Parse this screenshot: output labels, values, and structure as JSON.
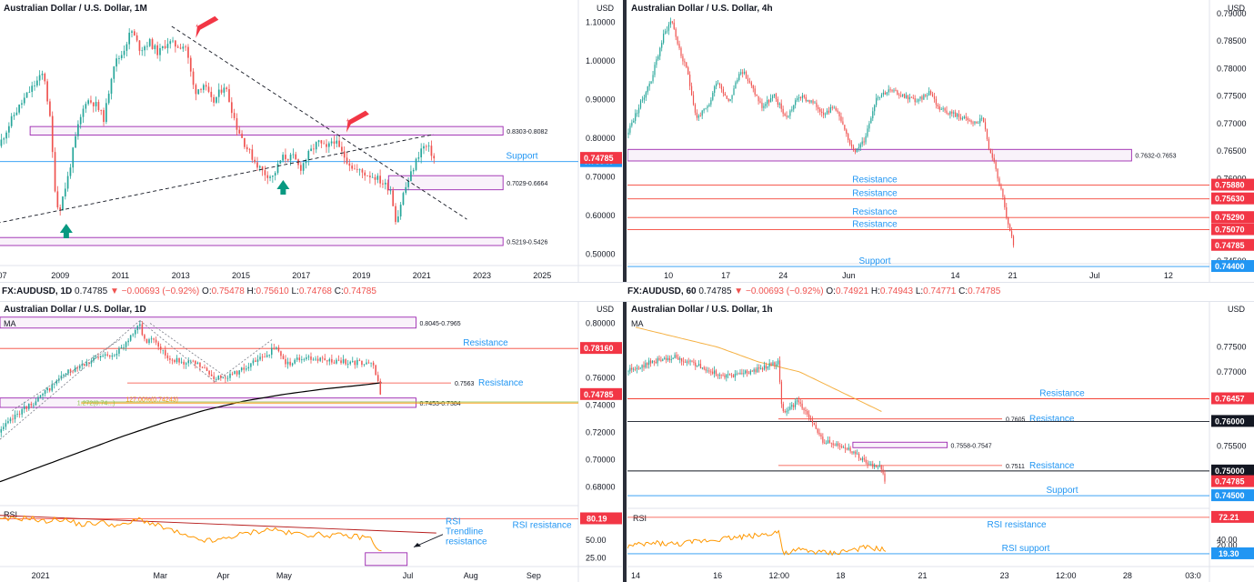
{
  "colors": {
    "up": "#26a69a",
    "down": "#ef5350",
    "zone": "#9c27b0",
    "resistance": "#f44336",
    "support": "#2196f3",
    "price_badge": "#f23645",
    "support_badge": "#2196f3",
    "black_badge": "#131722",
    "ma_line": "#000000",
    "rsi_line": "#ff9800",
    "arrow_red": "#f23645",
    "arrow_green": "#089981",
    "text_blue": "#2962ff"
  },
  "infobar": {
    "left": {
      "symbol": "FX:AUDUSD, 1D",
      "price": "0.74785",
      "change": "−0.00693 (−0.92%)",
      "o_label": "O:",
      "o": "0.75478",
      "h_label": "H:",
      "h": "0.75610",
      "l_label": "L:",
      "l": "0.74768",
      "c_label": "C:",
      "c": "0.74785"
    },
    "right": {
      "symbol": "FX:AUDUSD, 60",
      "price": "0.74785",
      "change": "−0.00693 (−0.92%)",
      "o_label": "O:",
      "o": "0.74921",
      "h_label": "H:",
      "h": "0.74943",
      "l_label": "L:",
      "l": "0.74771",
      "c_label": "C:",
      "c": "0.74785"
    }
  },
  "chart_data": [
    {
      "id": "monthly",
      "type": "candlestick",
      "title": "Australian Dollar / U.S. Dollar, 1M",
      "currency": "USD",
      "ylim": [
        0.47,
        1.13
      ],
      "ticks_y": [
        "1.10000",
        "1.00000",
        "0.90000",
        "0.80000",
        "0.70000",
        "0.60000",
        "0.50000"
      ],
      "ticks_y_values": [
        1.1,
        1.0,
        0.9,
        0.8,
        0.7,
        0.6,
        0.5
      ],
      "ticks_x": [
        "007",
        "2009",
        "2011",
        "2013",
        "2015",
        "2017",
        "2019",
        "2021",
        "2023",
        "2025"
      ],
      "xlim": [
        2007.0,
        2026.2
      ],
      "ticks_x_values": [
        2007.0,
        2009.0,
        2011.0,
        2013.0,
        2015.0,
        2017.0,
        2019.0,
        2021.0,
        2023.0,
        2025.0
      ],
      "price_path": [
        [
          2007.0,
          0.78
        ],
        [
          2007.5,
          0.86
        ],
        [
          2008.0,
          0.92
        ],
        [
          2008.5,
          0.97
        ],
        [
          2008.7,
          0.85
        ],
        [
          2008.9,
          0.64
        ],
        [
          2009.0,
          0.61
        ],
        [
          2009.3,
          0.7
        ],
        [
          2009.6,
          0.82
        ],
        [
          2009.9,
          0.9
        ],
        [
          2010.2,
          0.89
        ],
        [
          2010.5,
          0.85
        ],
        [
          2010.8,
          0.99
        ],
        [
          2011.1,
          1.02
        ],
        [
          2011.4,
          1.08
        ],
        [
          2011.7,
          1.03
        ],
        [
          2012.0,
          1.05
        ],
        [
          2012.3,
          1.02
        ],
        [
          2012.6,
          1.05
        ],
        [
          2012.9,
          1.04
        ],
        [
          2013.2,
          1.04
        ],
        [
          2013.5,
          0.92
        ],
        [
          2013.8,
          0.94
        ],
        [
          2014.1,
          0.89
        ],
        [
          2014.5,
          0.94
        ],
        [
          2014.9,
          0.83
        ],
        [
          2015.2,
          0.78
        ],
        [
          2015.5,
          0.74
        ],
        [
          2015.8,
          0.71
        ],
        [
          2016.1,
          0.7
        ],
        [
          2016.4,
          0.75
        ],
        [
          2016.8,
          0.75
        ],
        [
          2017.0,
          0.72
        ],
        [
          2017.3,
          0.76
        ],
        [
          2017.6,
          0.79
        ],
        [
          2017.9,
          0.77
        ],
        [
          2018.1,
          0.8
        ],
        [
          2018.4,
          0.76
        ],
        [
          2018.8,
          0.72
        ],
        [
          2019.1,
          0.71
        ],
        [
          2019.5,
          0.7
        ],
        [
          2019.8,
          0.68
        ],
        [
          2020.0,
          0.67
        ],
        [
          2020.2,
          0.58
        ],
        [
          2020.4,
          0.65
        ],
        [
          2020.7,
          0.71
        ],
        [
          2021.0,
          0.77
        ],
        [
          2021.15,
          0.78
        ],
        [
          2021.3,
          0.77
        ],
        [
          2021.45,
          0.75
        ]
      ],
      "zones": [
        {
          "label": "0.8303-0.8082",
          "top": 0.8303,
          "bottom": 0.8082,
          "x_start": 2008.0,
          "x_end": 2023.7
        },
        {
          "label": "0.7029-0.6664",
          "top": 0.7029,
          "bottom": 0.6664,
          "x_start": 2019.9,
          "x_end": 2023.7
        },
        {
          "label": "0.5219-0.5426",
          "top": 0.5426,
          "bottom": 0.5219,
          "x_start": 2006.8,
          "x_end": 2023.7
        }
      ],
      "levels": [
        {
          "label": "Support",
          "value": 0.7394,
          "badge": "0.73940",
          "kind": "support"
        }
      ],
      "price_badge": "0.74785",
      "last": 0.74785
    },
    {
      "id": "h4",
      "type": "candlestick",
      "title": "Australian Dollar / U.S. Dollar, 4h",
      "currency": "USD",
      "ylim": [
        0.7445,
        0.7905
      ],
      "ticks_y": [
        "0.79000",
        "0.78500",
        "0.78000",
        "0.77500",
        "0.77000",
        "0.76500",
        "0.76000",
        "0.74500"
      ],
      "ticks_y_values": [
        0.79,
        0.785,
        0.78,
        0.775,
        0.77,
        0.765,
        0.76,
        0.745
      ],
      "ticks_x": [
        "10",
        "17",
        "24",
        "Jun",
        "14",
        "21",
        "Jul",
        "12"
      ],
      "ticks_x_values": [
        10,
        17,
        24,
        32,
        45,
        52,
        62,
        71
      ],
      "xlim": [
        5,
        76
      ],
      "price_path": [
        [
          5.0,
          0.768
        ],
        [
          6.5,
          0.773
        ],
        [
          8.0,
          0.778
        ],
        [
          9.5,
          0.786
        ],
        [
          10.5,
          0.789
        ],
        [
          11.5,
          0.783
        ],
        [
          12.5,
          0.779
        ],
        [
          13.5,
          0.771
        ],
        [
          15.0,
          0.773
        ],
        [
          16.0,
          0.778
        ],
        [
          17.5,
          0.774
        ],
        [
          19.0,
          0.78
        ],
        [
          20.5,
          0.776
        ],
        [
          21.5,
          0.773
        ],
        [
          23.0,
          0.775
        ],
        [
          24.5,
          0.771
        ],
        [
          26.0,
          0.775
        ],
        [
          27.5,
          0.774
        ],
        [
          29.0,
          0.772
        ],
        [
          30.5,
          0.773
        ],
        [
          32.0,
          0.767
        ],
        [
          33.0,
          0.765
        ],
        [
          34.0,
          0.767
        ],
        [
          35.5,
          0.775
        ],
        [
          37.0,
          0.776
        ],
        [
          39.0,
          0.775
        ],
        [
          40.5,
          0.774
        ],
        [
          42.0,
          0.776
        ],
        [
          43.0,
          0.773
        ],
        [
          44.5,
          0.772
        ],
        [
          46.0,
          0.771
        ],
        [
          47.5,
          0.77
        ],
        [
          48.5,
          0.771
        ],
        [
          49.2,
          0.765
        ],
        [
          50.0,
          0.762
        ],
        [
          50.8,
          0.757
        ],
        [
          51.5,
          0.752
        ],
        [
          52.2,
          0.74785
        ]
      ],
      "zones": [
        {
          "label": "0.7632-0.7653",
          "top": 0.7653,
          "bottom": 0.7632,
          "x_start": 5,
          "x_end": 66.5
        }
      ],
      "levels": [
        {
          "label": "Resistance",
          "value": 0.7588,
          "badge": "0.75880",
          "kind": "resistance"
        },
        {
          "label": "Resistance",
          "value": 0.7563,
          "badge": "0.75630",
          "kind": "resistance"
        },
        {
          "label": "Resistance",
          "value": 0.7529,
          "badge": "0.75290",
          "kind": "resistance"
        },
        {
          "label": "Resistance",
          "value": 0.7507,
          "badge": "0.75070",
          "kind": "resistance"
        },
        {
          "label": "Support",
          "value": 0.744,
          "badge": "0.74400",
          "kind": "support"
        }
      ],
      "price_badge": "0.74785",
      "last": 0.74785
    },
    {
      "id": "daily",
      "type": "candlestick",
      "title": "Australian Dollar / U.S. Dollar, 1D",
      "currency": "USD",
      "indicator": "MA",
      "ylim": [
        0.6665,
        0.803
      ],
      "ticks_y": [
        "0.80000",
        "0.78000",
        "0.76000",
        "0.74000",
        "0.72000",
        "0.70000",
        "0.68000"
      ],
      "ticks_y_values": [
        0.8,
        0.78,
        0.76,
        0.74,
        0.72,
        0.7,
        0.68
      ],
      "ticks_x": [
        "2021",
        "Mar",
        "Apr",
        "May",
        "Jul",
        "Aug",
        "Sep"
      ],
      "ticks_x_values": [
        0,
        59,
        90,
        120,
        181,
        212,
        243
      ],
      "xlim": [
        -20,
        265
      ],
      "price_path": [
        [
          -20,
          0.72
        ],
        [
          -10,
          0.735
        ],
        [
          0,
          0.745
        ],
        [
          10,
          0.76
        ],
        [
          20,
          0.77
        ],
        [
          30,
          0.775
        ],
        [
          40,
          0.78
        ],
        [
          49,
          0.8
        ],
        [
          52,
          0.786
        ],
        [
          56,
          0.79
        ],
        [
          63,
          0.775
        ],
        [
          70,
          0.772
        ],
        [
          78,
          0.77
        ],
        [
          86,
          0.76
        ],
        [
          94,
          0.762
        ],
        [
          102,
          0.768
        ],
        [
          110,
          0.775
        ],
        [
          116,
          0.782
        ],
        [
          122,
          0.77
        ],
        [
          130,
          0.775
        ],
        [
          140,
          0.773
        ],
        [
          150,
          0.772
        ],
        [
          160,
          0.771
        ],
        [
          165,
          0.769
        ],
        [
          168,
          0.74785
        ]
      ],
      "ma_path": [
        [
          -20,
          0.684
        ],
        [
          0,
          0.695
        ],
        [
          20,
          0.706
        ],
        [
          40,
          0.717
        ],
        [
          60,
          0.727
        ],
        [
          80,
          0.736
        ],
        [
          100,
          0.743
        ],
        [
          120,
          0.748
        ],
        [
          140,
          0.752
        ],
        [
          160,
          0.755
        ],
        [
          168,
          0.7565
        ]
      ],
      "zones": [
        {
          "label": "0.8045-0.7965",
          "top": 0.8045,
          "bottom": 0.7965,
          "x_start": -20,
          "x_end": 185
        },
        {
          "label": "0.7453-0.7384",
          "top": 0.7453,
          "bottom": 0.7384,
          "x_start": -20,
          "x_end": 185
        }
      ],
      "levels": [
        {
          "label": "Resistance",
          "value": 0.7816,
          "badge": "0.78160",
          "kind": "resistance"
        },
        {
          "label": "Resistance",
          "value": 0.7563,
          "prefix": "0.7563",
          "kind": "resistance_short"
        }
      ],
      "fib_labels": [
        "1.272(0.74...)",
        "127.00%(0.74243)"
      ],
      "price_badge": "0.74785",
      "last": 0.74785,
      "rsi": {
        "label": "RSI",
        "ticks": [
          "50.00",
          "25.00"
        ],
        "badge": "80.19",
        "resistance_label": "RSI resistance",
        "trendline_label": [
          "RSI",
          "Trendline",
          "resistance"
        ],
        "ylim": [
          15,
          95
        ],
        "path": [
          [
            -20,
            78
          ],
          [
            -5,
            82
          ],
          [
            0,
            76
          ],
          [
            10,
            80
          ],
          [
            20,
            72
          ],
          [
            30,
            75
          ],
          [
            40,
            70
          ],
          [
            49,
            80
          ],
          [
            56,
            72
          ],
          [
            66,
            62
          ],
          [
            74,
            52
          ],
          [
            86,
            48
          ],
          [
            94,
            55
          ],
          [
            106,
            62
          ],
          [
            114,
            66
          ],
          [
            122,
            60
          ],
          [
            132,
            58
          ],
          [
            144,
            57
          ],
          [
            154,
            55
          ],
          [
            162,
            54
          ],
          [
            168,
            32
          ]
        ],
        "trendline": [
          [
            -20,
            85
          ],
          [
            195,
            60
          ]
        ],
        "resistance_level": 80.19
      }
    },
    {
      "id": "h1",
      "type": "candlestick",
      "title": "Australian Dollar / U.S. Dollar, 1h",
      "currency": "USD",
      "indicator": "MA",
      "ylim": [
        0.743,
        0.781
      ],
      "ticks_y": [
        "0.77500",
        "0.77000",
        "0.76500",
        "0.76000",
        "0.75500",
        "0.75000",
        "0.74500"
      ],
      "ticks_y_values": [
        0.775,
        0.77,
        0.765,
        0.76,
        0.755,
        0.75,
        0.745
      ],
      "ticks_x": [
        "14",
        "16",
        "12:00",
        "18",
        "21",
        "23",
        "12:00",
        "28",
        "03:0"
      ],
      "ticks_x_values": [
        14,
        16,
        17.5,
        19,
        21,
        23,
        24.5,
        26,
        27.6
      ],
      "xlim": [
        13.8,
        28.0
      ],
      "price_path": [
        [
          13.8,
          0.77
        ],
        [
          14.4,
          0.772
        ],
        [
          15.0,
          0.773
        ],
        [
          15.6,
          0.771
        ],
        [
          16.2,
          0.769
        ],
        [
          16.8,
          0.77
        ],
        [
          17.2,
          0.771
        ],
        [
          17.5,
          0.772
        ],
        [
          17.6,
          0.762
        ],
        [
          18.0,
          0.764
        ],
        [
          18.3,
          0.76
        ],
        [
          18.6,
          0.756
        ],
        [
          19.0,
          0.755
        ],
        [
          19.3,
          0.754
        ],
        [
          19.6,
          0.752
        ],
        [
          19.8,
          0.751
        ],
        [
          20.0,
          0.751
        ],
        [
          20.1,
          0.74785
        ]
      ],
      "ma_path": [
        [
          14.0,
          0.779
        ],
        [
          15.0,
          0.777
        ],
        [
          16.0,
          0.775
        ],
        [
          17.0,
          0.772
        ],
        [
          18.0,
          0.77
        ],
        [
          19.0,
          0.766
        ],
        [
          20.0,
          0.762
        ]
      ],
      "zones": [
        {
          "label": "0.7558-0.7547",
          "top": 0.7558,
          "bottom": 0.7547,
          "x_start": 19.3,
          "x_end": 21.6
        }
      ],
      "levels": [
        {
          "label": "Resistance",
          "value": 0.76457,
          "badge": "0.76457",
          "kind": "resistance"
        },
        {
          "label": "Resistance",
          "value": 0.7605,
          "prefix": "0.7605",
          "kind": "resistance_short"
        },
        {
          "label": "",
          "value": 0.76,
          "badge": "0.76000",
          "kind": "black"
        },
        {
          "label": "Resistance",
          "value": 0.7511,
          "prefix": "0.7511",
          "kind": "resistance_short"
        },
        {
          "label": "",
          "value": 0.75,
          "badge": "0.75000",
          "kind": "black"
        },
        {
          "label": "Support",
          "value": 0.745,
          "badge": "0.74500",
          "kind": "support"
        }
      ],
      "price_badge": "0.74785",
      "last": 0.74785,
      "rsi": {
        "label": "RSI",
        "ticks": [
          "40.00",
          "20.00"
        ],
        "badge": "72.21",
        "support_badge": "19.30",
        "resistance_label": "RSI resistance",
        "support_label": "RSI support",
        "ylim": [
          10,
          80
        ],
        "path": [
          [
            13.8,
            30
          ],
          [
            14.5,
            35
          ],
          [
            15.0,
            33
          ],
          [
            15.6,
            38
          ],
          [
            16.2,
            42
          ],
          [
            16.8,
            45
          ],
          [
            17.2,
            48
          ],
          [
            17.5,
            52
          ],
          [
            17.6,
            18
          ],
          [
            18.0,
            25
          ],
          [
            18.4,
            22
          ],
          [
            18.8,
            20
          ],
          [
            19.2,
            24
          ],
          [
            19.6,
            28
          ],
          [
            20.0,
            26
          ],
          [
            20.1,
            24
          ]
        ],
        "resistance_level": 72.21,
        "support_level": 19.3
      }
    }
  ]
}
